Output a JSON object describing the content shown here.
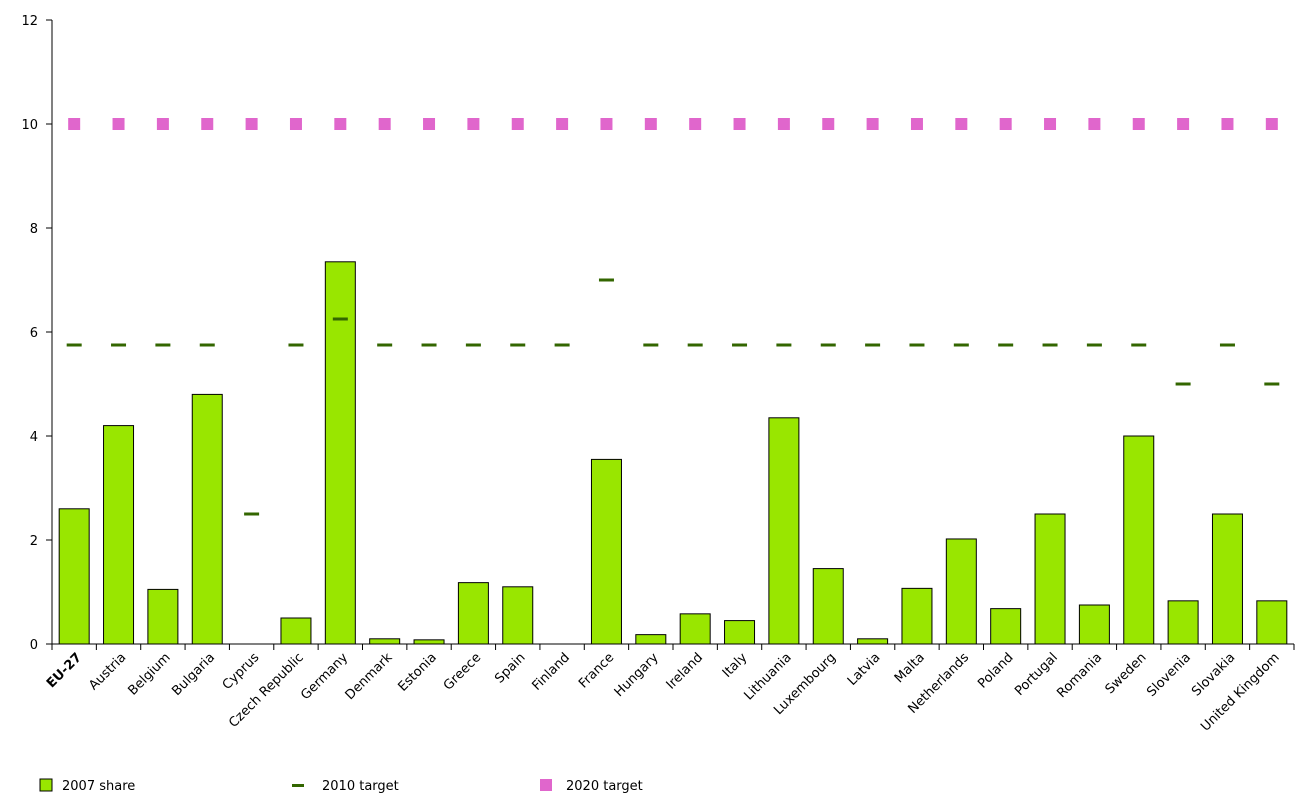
{
  "chart_data": {
    "type": "bar",
    "title": "",
    "xlabel": "",
    "ylabel": "",
    "ylim": [
      0,
      12
    ],
    "yticks": [
      0,
      2,
      4,
      6,
      8,
      10,
      12
    ],
    "grid": false,
    "legend_position": "bottom-left",
    "categories": [
      "EU-27",
      "Austria",
      "Belgium",
      "Bulgaria",
      "Cyprus",
      "Czech Republic",
      "Germany",
      "Denmark",
      "Estonia",
      "Greece",
      "Spain",
      "Finland",
      "France",
      "Hungary",
      "Ireland",
      "Italy",
      "Lithuania",
      "Luxembourg",
      "Latvia",
      "Malta",
      "Netherlands",
      "Poland",
      "Portugal",
      "Romania",
      "Sweden",
      "Slovenia",
      "Slovakia",
      "United Kingdom"
    ],
    "bold_categories": [
      "EU-27"
    ],
    "series": [
      {
        "name": "2007 share",
        "kind": "bar",
        "color": "#99e600",
        "values": [
          2.6,
          4.2,
          1.05,
          4.8,
          0,
          0.5,
          7.35,
          0.1,
          0.08,
          1.18,
          1.1,
          0,
          3.55,
          0.18,
          0.58,
          0.45,
          4.35,
          1.45,
          0.1,
          1.07,
          2.02,
          0.68,
          2.5,
          0.75,
          4.0,
          0.83,
          2.5,
          0.83
        ]
      },
      {
        "name": "2010 target",
        "kind": "dash",
        "color": "#336600",
        "values": [
          5.75,
          5.75,
          5.75,
          5.75,
          2.5,
          5.75,
          6.25,
          5.75,
          5.75,
          5.75,
          5.75,
          5.75,
          7.0,
          5.75,
          5.75,
          5.75,
          5.75,
          5.75,
          5.75,
          5.75,
          5.75,
          5.75,
          5.75,
          5.75,
          5.75,
          5.0,
          5.75,
          5.0
        ]
      },
      {
        "name": "2020 target",
        "kind": "square",
        "color": "#e066cc",
        "values": [
          10,
          10,
          10,
          10,
          10,
          10,
          10,
          10,
          10,
          10,
          10,
          10,
          10,
          10,
          10,
          10,
          10,
          10,
          10,
          10,
          10,
          10,
          10,
          10,
          10,
          10,
          10,
          10
        ]
      }
    ]
  }
}
